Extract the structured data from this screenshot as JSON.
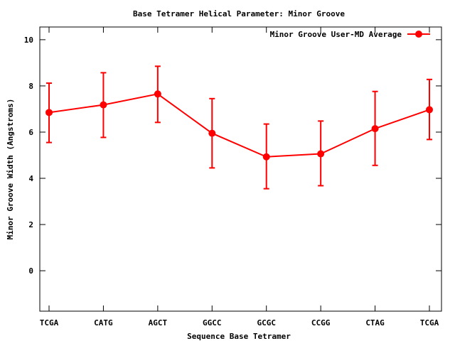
{
  "chart_data": {
    "type": "line",
    "title": "Base Tetramer Helical Parameter: Minor Groove",
    "xlabel": "Sequence Base Tetramer",
    "ylabel": "Minor Groove Width (Angstroms)",
    "categories": [
      "TCGA",
      "CATG",
      "AGCT",
      "GGCC",
      "GCGC",
      "CCGG",
      "CTAG",
      "TCGA"
    ],
    "ylim": [
      -1.75,
      10.55
    ],
    "yticks": [
      "0",
      "2",
      "4",
      "6",
      "8",
      "10"
    ],
    "legend_position": "top-right",
    "grid": false,
    "series": [
      {
        "name": "Minor Groove User-MD Average",
        "color": "#ff0000",
        "values": [
          6.85,
          7.18,
          7.65,
          5.95,
          4.93,
          5.06,
          6.15,
          6.97
        ],
        "error_low": [
          5.55,
          5.77,
          6.42,
          4.45,
          3.55,
          3.68,
          4.56,
          5.68
        ],
        "error_high": [
          8.12,
          8.57,
          8.85,
          7.45,
          6.35,
          6.48,
          7.76,
          8.28
        ]
      }
    ]
  }
}
